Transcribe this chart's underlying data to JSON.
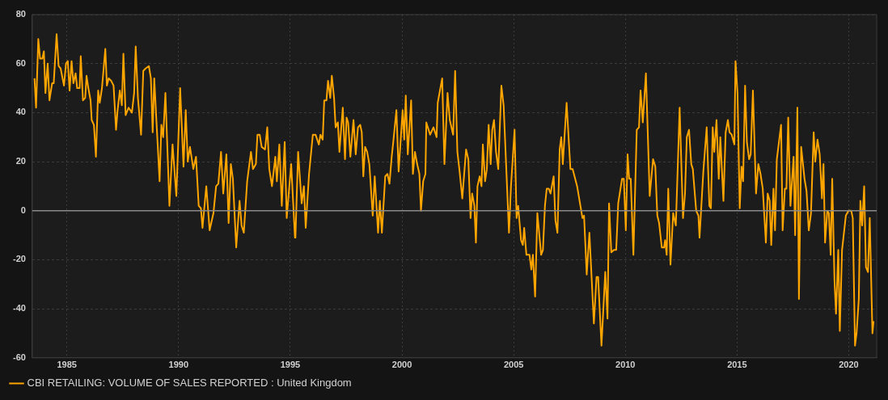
{
  "chart_data": {
    "type": "line",
    "x": [
      1983.55,
      1983.62,
      1983.72,
      1983.8,
      1983.9,
      1983.97,
      1984.04,
      1984.14,
      1984.22,
      1984.34,
      1984.41,
      1984.54,
      1984.63,
      1984.72,
      1984.87,
      1984.96,
      1985.04,
      1985.12,
      1985.21,
      1985.29,
      1985.39,
      1985.46,
      1985.57,
      1985.62,
      1985.72,
      1985.82,
      1985.88,
      1985.96,
      1986.06,
      1986.11,
      1986.21,
      1986.3,
      1986.4,
      1986.47,
      1986.57,
      1986.72,
      1986.79,
      1986.87,
      1986.98,
      1987.09,
      1987.2,
      1987.27,
      1987.37,
      1987.46,
      1987.53,
      1987.63,
      1987.76,
      1987.91,
      1988.01,
      1988.08,
      1988.18,
      1988.32,
      1988.42,
      1988.52,
      1988.67,
      1988.76,
      1988.84,
      1988.91,
      1989.0,
      1989.15,
      1989.23,
      1989.31,
      1989.41,
      1989.59,
      1989.73,
      1989.9,
      1990.07,
      1990.22,
      1990.32,
      1990.41,
      1990.51,
      1990.66,
      1990.78,
      1990.9,
      1991.0,
      1991.07,
      1991.24,
      1991.39,
      1991.56,
      1991.68,
      1991.78,
      1991.9,
      1992.0,
      1992.14,
      1992.24,
      1992.34,
      1992.43,
      1992.58,
      1992.73,
      1992.82,
      1992.92,
      1993.07,
      1993.24,
      1993.33,
      1993.46,
      1993.53,
      1993.63,
      1993.72,
      1993.87,
      1993.97,
      1994.06,
      1994.18,
      1994.33,
      1994.4,
      1994.51,
      1994.62,
      1994.75,
      1994.84,
      1995.04,
      1995.21,
      1995.23,
      1995.35,
      1995.51,
      1995.61,
      1995.69,
      1995.84,
      1996.01,
      1996.13,
      1996.28,
      1996.35,
      1996.45,
      1996.52,
      1996.62,
      1996.69,
      1996.79,
      1996.86,
      1996.96,
      1997.03,
      1997.13,
      1997.2,
      1997.35,
      1997.45,
      1997.52,
      1997.59,
      1997.69,
      1997.83,
      1997.93,
      1998.03,
      1998.13,
      1998.2,
      1998.27,
      1998.35,
      1998.44,
      1998.54,
      1998.69,
      1998.78,
      1998.93,
      1999.01,
      1999.1,
      1999.25,
      1999.35,
      1999.44,
      1999.54,
      1999.61,
      1999.75,
      1999.85,
      2000.03,
      2000.1,
      2000.17,
      2000.26,
      2000.41,
      2000.49,
      2000.58,
      2000.68,
      2000.78,
      2000.85,
      2000.95,
      2001.05,
      2001.09,
      2001.26,
      2001.41,
      2001.55,
      2001.6,
      2001.8,
      2001.9,
      2002.04,
      2002.14,
      2002.29,
      2002.38,
      2002.48,
      2002.58,
      2002.7,
      2002.87,
      2002.97,
      2003.07,
      2003.14,
      2003.24,
      2003.31,
      2003.38,
      2003.48,
      2003.56,
      2003.62,
      2003.72,
      2003.8,
      2003.88,
      2003.97,
      2004.04,
      2004.12,
      2004.21,
      2004.31,
      2004.45,
      2004.55,
      2004.67,
      2004.79,
      2004.88,
      2005.04,
      2005.13,
      2005.2,
      2005.33,
      2005.41,
      2005.47,
      2005.57,
      2005.71,
      2005.79,
      2005.86,
      2005.96,
      2006.06,
      2006.23,
      2006.31,
      2006.4,
      2006.48,
      2006.57,
      2006.65,
      2006.79,
      2006.87,
      2006.96,
      2007.06,
      2007.13,
      2007.2,
      2007.37,
      2007.54,
      2007.64,
      2007.84,
      2008.08,
      2008.15,
      2008.27,
      2008.39,
      2008.59,
      2008.71,
      2008.78,
      2008.93,
      2009.1,
      2009.2,
      2009.27,
      2009.37,
      2009.49,
      2009.59,
      2009.68,
      2009.85,
      2009.93,
      2010.02,
      2010.1,
      2010.17,
      2010.24,
      2010.36,
      2010.51,
      2010.61,
      2010.68,
      2010.78,
      2010.92,
      2011.09,
      2011.24,
      2011.34,
      2011.43,
      2011.51,
      2011.63,
      2011.73,
      2011.78,
      2011.85,
      2011.92,
      2012.02,
      2012.14,
      2012.26,
      2012.43,
      2012.58,
      2012.67,
      2012.75,
      2012.85,
      2012.95,
      2013.02,
      2013.17,
      2013.27,
      2013.32,
      2013.49,
      2013.64,
      2013.76,
      2013.83,
      2013.91,
      2013.98,
      2014.08,
      2014.18,
      2014.25,
      2014.39,
      2014.49,
      2014.59,
      2014.66,
      2014.76,
      2014.88,
      2014.93,
      2015.02,
      2015.12,
      2015.2,
      2015.27,
      2015.36,
      2015.44,
      2015.54,
      2015.61,
      2015.71,
      2015.85,
      2015.95,
      2016.05,
      2016.15,
      2016.29,
      2016.37,
      2016.46,
      2016.53,
      2016.63,
      2016.7,
      2016.78,
      2016.97,
      2017.04,
      2017.14,
      2017.21,
      2017.29,
      2017.39,
      2017.53,
      2017.6,
      2017.7,
      2017.77,
      2017.87,
      2018.02,
      2018.11,
      2018.21,
      2018.31,
      2018.43,
      2018.5,
      2018.6,
      2018.7,
      2018.8,
      2018.87,
      2018.94,
      2019.04,
      2019.11,
      2019.19,
      2019.26,
      2019.36,
      2019.43,
      2019.53,
      2019.6,
      2019.7,
      2019.87,
      2019.99,
      2020.11,
      2020.18,
      2020.28,
      2020.35,
      2020.45,
      2020.52,
      2020.6,
      2020.69,
      2020.77,
      2020.86,
      2020.94,
      2021.06,
      2021.11
    ],
    "series": [
      {
        "name": "CBI RETAILING: VOLUME OF SALES REPORTED : United Kingdom",
        "color": "#ffa500",
        "values": [
          54,
          42,
          70,
          62,
          62,
          65,
          48,
          60,
          45,
          52,
          52,
          72,
          59,
          58,
          51,
          60,
          61,
          49,
          61,
          52,
          56,
          50,
          50,
          63,
          45,
          46,
          55,
          50,
          45,
          37,
          35,
          22,
          49,
          44,
          50,
          66,
          51,
          54,
          53,
          51,
          33,
          41,
          49,
          43,
          64,
          39,
          42,
          40,
          48,
          67,
          46,
          31,
          57,
          58,
          59,
          54,
          32,
          54,
          38,
          12,
          35,
          30,
          48,
          2,
          27,
          6,
          50,
          18,
          41,
          20,
          26,
          17,
          22,
          2,
          1,
          -7,
          10,
          -8,
          -1,
          10,
          11,
          24,
          7,
          23,
          -5,
          19,
          13,
          -15,
          4,
          -6,
          -9,
          12,
          24,
          17,
          19,
          31,
          31,
          26,
          25,
          34,
          17,
          10,
          22,
          12,
          27,
          2,
          28,
          -3,
          19,
          -11,
          -11,
          24,
          3,
          10,
          -7,
          15,
          31,
          31,
          27,
          31,
          29,
          45,
          45,
          53,
          46,
          55,
          46,
          34,
          36,
          24,
          42,
          21,
          38,
          36,
          22,
          37,
          23,
          34,
          35,
          32,
          14,
          26,
          24,
          19,
          -2,
          14,
          -9,
          4,
          -9,
          14,
          15,
          11,
          22,
          28,
          41,
          16,
          41,
          29,
          47,
          23,
          45,
          15,
          24,
          19,
          15,
          0,
          12,
          15,
          36,
          31,
          34,
          30,
          44,
          54,
          19,
          48,
          37,
          31,
          57,
          24,
          16,
          5,
          25,
          21,
          -3,
          7,
          2,
          -13,
          10,
          14,
          10,
          27,
          12,
          17,
          35,
          19,
          33,
          37,
          24,
          17,
          51,
          43,
          17,
          -9,
          10,
          33,
          -3,
          2,
          -12,
          -14,
          -7,
          -18,
          -18,
          -24,
          -18,
          -35,
          -1,
          -18,
          -16,
          2,
          9,
          9,
          7,
          14,
          -4,
          -9,
          25,
          30,
          19,
          44,
          17,
          17,
          10,
          -3,
          -2,
          -26,
          -9,
          -46,
          -27,
          -27,
          -55,
          -25,
          -44,
          3,
          -17,
          -16,
          -16,
          3,
          13,
          13,
          -8,
          23,
          13,
          13,
          -18,
          33,
          34,
          49,
          36,
          56,
          6,
          21,
          18,
          -2,
          -5,
          -15,
          -15,
          -12,
          -18,
          9,
          -22,
          -1,
          -6,
          42,
          -3,
          7,
          30,
          33,
          19,
          17,
          0,
          -2,
          -11,
          16,
          34,
          2,
          1,
          34,
          24,
          37,
          13,
          30,
          4,
          32,
          37,
          32,
          31,
          27,
          61,
          48,
          1,
          18,
          12,
          51,
          28,
          21,
          23,
          49,
          7,
          19,
          15,
          9,
          -13,
          7,
          4,
          -14,
          9,
          -8,
          21,
          35,
          -8,
          9,
          9,
          38,
          2,
          22,
          -10,
          42,
          -36,
          26,
          13,
          8,
          -8,
          -1,
          32,
          20,
          29,
          23,
          5,
          19,
          -13,
          0,
          -1,
          -18,
          13,
          -28,
          -42,
          -16,
          -49,
          -16,
          -2,
          0,
          0,
          -3,
          -55,
          -50,
          -36,
          4,
          -6,
          10,
          -23,
          -25,
          -3,
          -50,
          -45
        ]
      }
    ],
    "xlim": [
      1983.45,
      2021.25
    ],
    "xticks": [
      1985,
      1990,
      1995,
      2000,
      2005,
      2010,
      2015,
      2020
    ],
    "ylim": [
      -60,
      80
    ],
    "yticks": [
      -60,
      -40,
      -20,
      0,
      20,
      40,
      60,
      80
    ],
    "ref_lines": [
      {
        "axis": "y",
        "value": 0,
        "color": "#8a8a8a"
      }
    ],
    "grid": true,
    "legend": "bottom",
    "marker": "none",
    "line_style": "solid"
  }
}
